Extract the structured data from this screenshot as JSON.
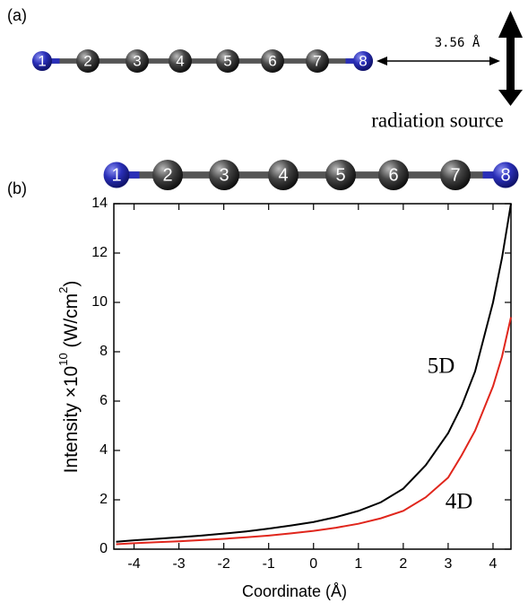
{
  "panel_a_label": "(a)",
  "panel_b_label": "(b)",
  "atoms": [
    "1",
    "2",
    "3",
    "4",
    "5",
    "6",
    "7",
    "8"
  ],
  "distance_label": "3.56 Å",
  "source_label": "radiation source",
  "chart_data": {
    "type": "line",
    "x_label": "Coordinate (Å)",
    "y_label_parts": [
      "Intensity ×10",
      "10",
      " (W/cm",
      "2",
      ")"
    ],
    "x": [
      -4.4,
      -4,
      -3.5,
      -3,
      -2.5,
      -2,
      -1.5,
      -1,
      -0.5,
      0,
      0.5,
      1,
      1.5,
      2,
      2.5,
      3,
      3.3,
      3.6,
      4,
      4.2,
      4.4
    ],
    "series": [
      {
        "name": "5D",
        "color": "#000000",
        "values": [
          0.3,
          0.36,
          0.42,
          0.48,
          0.55,
          0.63,
          0.72,
          0.83,
          0.96,
          1.1,
          1.3,
          1.55,
          1.9,
          2.45,
          3.4,
          4.7,
          5.8,
          7.2,
          10.0,
          11.8,
          14
        ]
      },
      {
        "name": "4D",
        "color": "#e0261c",
        "values": [
          0.2,
          0.24,
          0.28,
          0.32,
          0.37,
          0.42,
          0.48,
          0.55,
          0.64,
          0.74,
          0.87,
          1.03,
          1.25,
          1.55,
          2.1,
          2.9,
          3.8,
          4.8,
          6.6,
          7.8,
          9.4
        ]
      }
    ],
    "xlim": [
      -4.45,
      4.4
    ],
    "ylim": [
      0,
      14
    ],
    "xticks": [
      -4,
      -3,
      -2,
      -1,
      0,
      1,
      2,
      3,
      4
    ],
    "yticks": [
      0,
      2,
      4,
      6,
      8,
      10,
      12,
      14
    ]
  }
}
